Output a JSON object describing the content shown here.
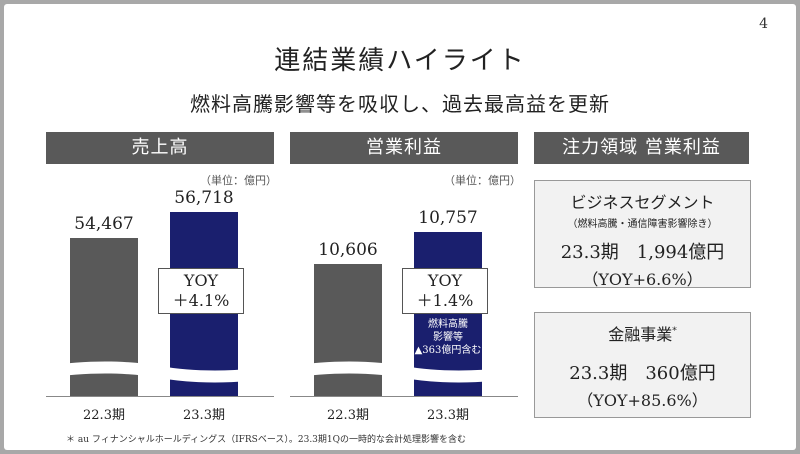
{
  "page_number": "4",
  "title": "連結業績ハイライト",
  "subtitle": "燃料高騰影響等を吸収し、過去最高益を更新",
  "sales": {
    "header": "売上高",
    "unit": "（単位：億円）",
    "bars": [
      {
        "category": "22.3期",
        "value_label": "54,467",
        "value": 54467,
        "color": "#595959"
      },
      {
        "category": "23.3期",
        "value_label": "56,718",
        "value": 56718,
        "color": "#1a1f6e"
      }
    ],
    "yoy_line1": "YOY",
    "yoy_line2": "＋4.1%"
  },
  "op_profit": {
    "header": "営業利益",
    "unit": "（単位：億円）",
    "bars": [
      {
        "category": "22.3期",
        "value_label": "10,606",
        "value": 10606,
        "color": "#595959"
      },
      {
        "category": "23.3期",
        "value_label": "10,757",
        "value": 10757,
        "color": "#1a1f6e"
      }
    ],
    "yoy_line1": "YOY",
    "yoy_line2": "＋1.4%",
    "note_line1": "燃料高騰",
    "note_line2": "影響等",
    "note_line3": "▲363億円含む"
  },
  "focus": {
    "header": "注力領域  営業利益",
    "business": {
      "title": "ビジネスセグメント",
      "subtitle": "（燃料高騰・通信障害影響除き）",
      "line1": "23.3期　1,994億円",
      "line2": "（YOY+6.6%）"
    },
    "finance": {
      "title": "金融事業",
      "title_mark": "*",
      "line1": "23.3期　360億円",
      "line2": "（YOY+85.6%）"
    }
  },
  "footnote": "＊ au フィナンシャルホールディングス（IFRSベース）。23.3期1Qの一時的な会計処理影響を含む",
  "colors": {
    "header_bg": "#595959",
    "navy": "#1a1f6e",
    "red": "#c0392b"
  }
}
